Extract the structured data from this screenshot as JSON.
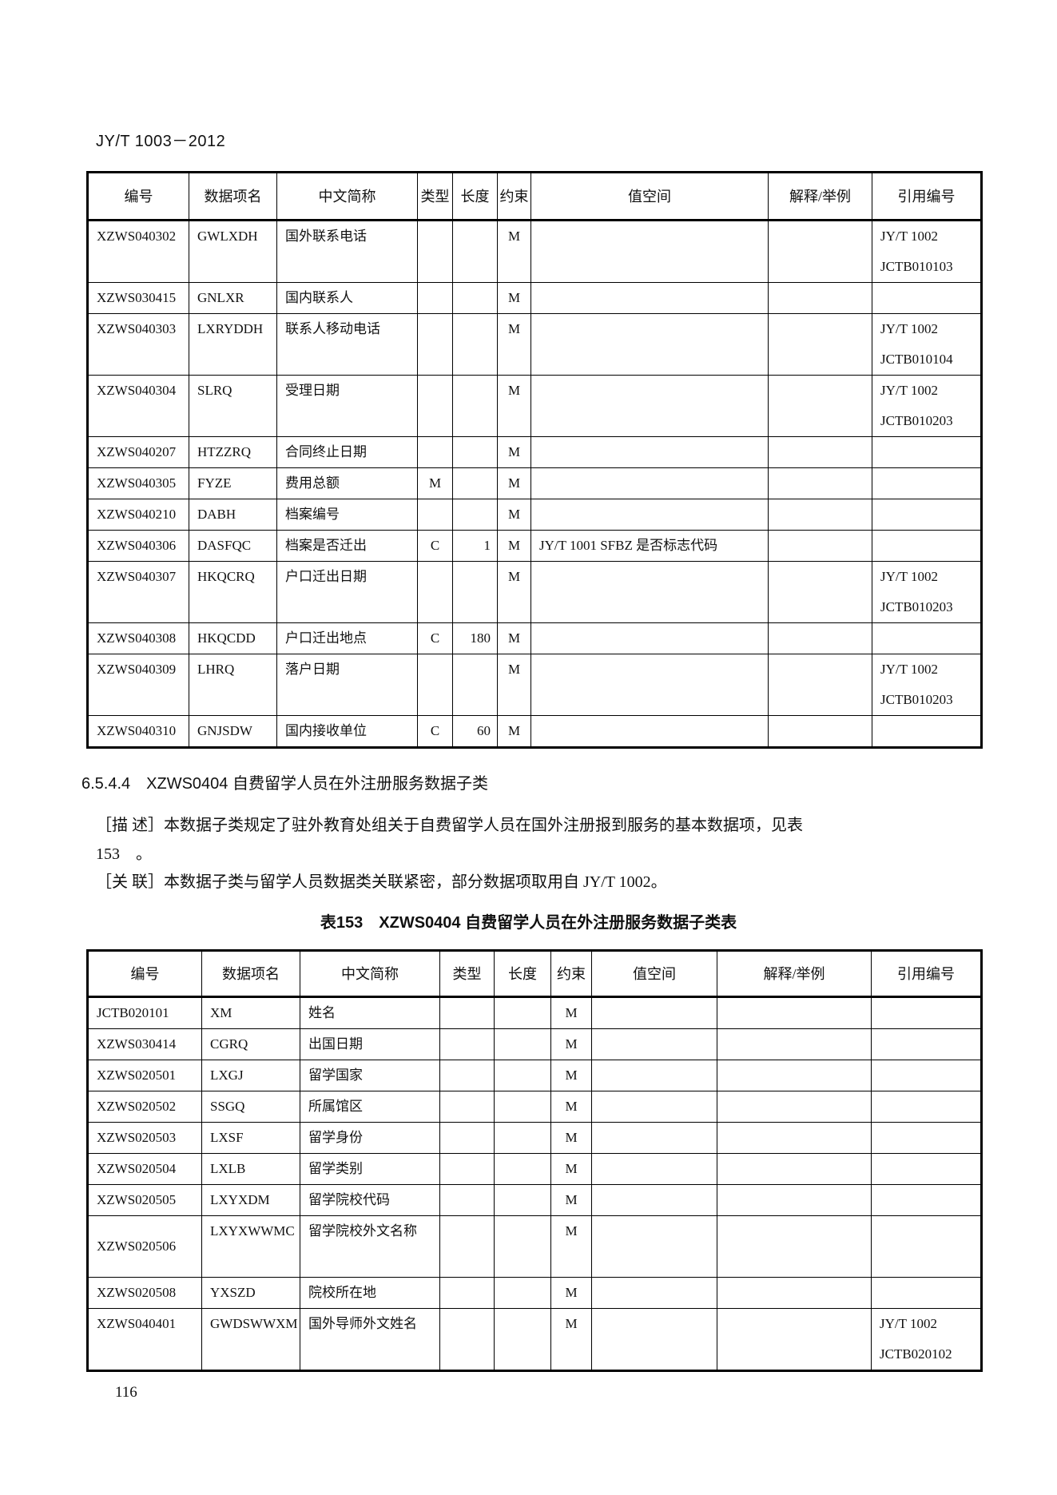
{
  "header": {
    "standard_no": "JY/T 1003－2012"
  },
  "columns": [
    "编号",
    "数据项名",
    "中文简称",
    "类型",
    "长度",
    "约束",
    "值空间",
    "解释/举例",
    "引用编号"
  ],
  "table1": {
    "rows": [
      {
        "code": "XZWS040302",
        "name": "GWLXDH",
        "cn": "国外联系电话",
        "type": "",
        "len": "",
        "con": "M",
        "value": "",
        "note": "",
        "ref": [
          "JY/T 1002",
          "JCTB010103"
        ]
      },
      {
        "code": "XZWS030415",
        "name": "GNLXR",
        "cn": "国内联系人",
        "type": "",
        "len": "",
        "con": "M",
        "value": "",
        "note": "",
        "ref": []
      },
      {
        "code": "XZWS040303",
        "name": "LXRYDDH",
        "cn": "联系人移动电话",
        "type": "",
        "len": "",
        "con": "M",
        "value": "",
        "note": "",
        "ref": [
          "JY/T 1002",
          "JCTB010104"
        ]
      },
      {
        "code": "XZWS040304",
        "name": "SLRQ",
        "cn": "受理日期",
        "type": "",
        "len": "",
        "con": "M",
        "value": "",
        "note": "",
        "ref": [
          "JY/T 1002",
          "JCTB010203"
        ]
      },
      {
        "code": "XZWS040207",
        "name": "HTZZRQ",
        "cn": "合同终止日期",
        "type": "",
        "len": "",
        "con": "M",
        "value": "",
        "note": "",
        "ref": []
      },
      {
        "code": "XZWS040305",
        "name": "FYZE",
        "cn": "费用总额",
        "type": "M",
        "len": "",
        "con": "M",
        "value": "",
        "note": "",
        "ref": []
      },
      {
        "code": "XZWS040210",
        "name": "DABH",
        "cn": "档案编号",
        "type": "",
        "len": "",
        "con": "M",
        "value": "",
        "note": "",
        "ref": []
      },
      {
        "code": "XZWS040306",
        "name": "DASFQC",
        "cn": "档案是否迁出",
        "type": "C",
        "len": "1",
        "con": "M",
        "value": "JY/T 1001 SFBZ 是否标志代码",
        "note": "",
        "ref": []
      },
      {
        "code": "XZWS040307",
        "name": "HKQCRQ",
        "cn": "户口迁出日期",
        "type": "",
        "len": "",
        "con": "M",
        "value": "",
        "note": "",
        "ref": [
          "JY/T 1002",
          "JCTB010203"
        ]
      },
      {
        "code": "XZWS040308",
        "name": "HKQCDD",
        "cn": "户口迁出地点",
        "type": "C",
        "len": "180",
        "con": "M",
        "value": "",
        "note": "",
        "ref": []
      },
      {
        "code": "XZWS040309",
        "name": "LHRQ",
        "cn": "落户日期",
        "type": "",
        "len": "",
        "con": "M",
        "value": "",
        "note": "",
        "ref": [
          "JY/T 1002",
          "JCTB010203"
        ]
      },
      {
        "code": "XZWS040310",
        "name": "GNJSDW",
        "cn": "国内接收单位",
        "type": "C",
        "len": "60",
        "con": "M",
        "value": "",
        "note": "",
        "ref": []
      }
    ]
  },
  "section": {
    "heading": "6.5.4.4　XZWS0404 自费留学人员在外注册服务数据子类",
    "desc_line1": "［描 述］本数据子类规定了驻外教育处组关于自费留学人员在国外注册报到服务的基本数据项，见表",
    "desc_line2": "153　。",
    "relation": "［关 联］本数据子类与留学人员数据类关联紧密，部分数据项取用自 JY/T 1002。"
  },
  "table2": {
    "caption": "表153　XZWS0404 自费留学人员在外注册服务数据子类表",
    "rows": [
      {
        "code": "JCTB020101",
        "name": "XM",
        "cn": "姓名",
        "type": "",
        "len": "",
        "con": "M",
        "value": "",
        "note": "",
        "ref": []
      },
      {
        "code": "XZWS030414",
        "name": "CGRQ",
        "cn": "出国日期",
        "type": "",
        "len": "",
        "con": "M",
        "value": "",
        "note": "",
        "ref": []
      },
      {
        "code": "XZWS020501",
        "name": "LXGJ",
        "cn": "留学国家",
        "type": "",
        "len": "",
        "con": "M",
        "value": "",
        "note": "",
        "ref": []
      },
      {
        "code": "XZWS020502",
        "name": "SSGQ",
        "cn": "所属馆区",
        "type": "",
        "len": "",
        "con": "M",
        "value": "",
        "note": "",
        "ref": []
      },
      {
        "code": "XZWS020503",
        "name": "LXSF",
        "cn": "留学身份",
        "type": "",
        "len": "",
        "con": "M",
        "value": "",
        "note": "",
        "ref": []
      },
      {
        "code": "XZWS020504",
        "name": "LXLB",
        "cn": "留学类别",
        "type": "",
        "len": "",
        "con": "M",
        "value": "",
        "note": "",
        "ref": []
      },
      {
        "code": "XZWS020505",
        "name": "LXYXDM",
        "cn": "留学院校代码",
        "type": "",
        "len": "",
        "con": "M",
        "value": "",
        "note": "",
        "ref": []
      },
      {
        "code": "XZWS020506",
        "name": "LXYXWWMC",
        "cn": "留学院校外文名称",
        "type": "",
        "len": "",
        "con": "M",
        "value": "",
        "note": "",
        "ref": [],
        "double": true,
        "code_mid": true
      },
      {
        "code": "XZWS020508",
        "name": "YXSZD",
        "cn": "院校所在地",
        "type": "",
        "len": "",
        "con": "M",
        "value": "",
        "note": "",
        "ref": []
      },
      {
        "code": "XZWS040401",
        "name": "GWDSWWXM",
        "cn": "国外导师外文姓名",
        "type": "",
        "len": "",
        "con": "M",
        "value": "",
        "note": "",
        "ref": [
          "JY/T 1002",
          "JCTB020102"
        ],
        "double": true
      }
    ]
  },
  "footer": {
    "page_number": "116"
  }
}
